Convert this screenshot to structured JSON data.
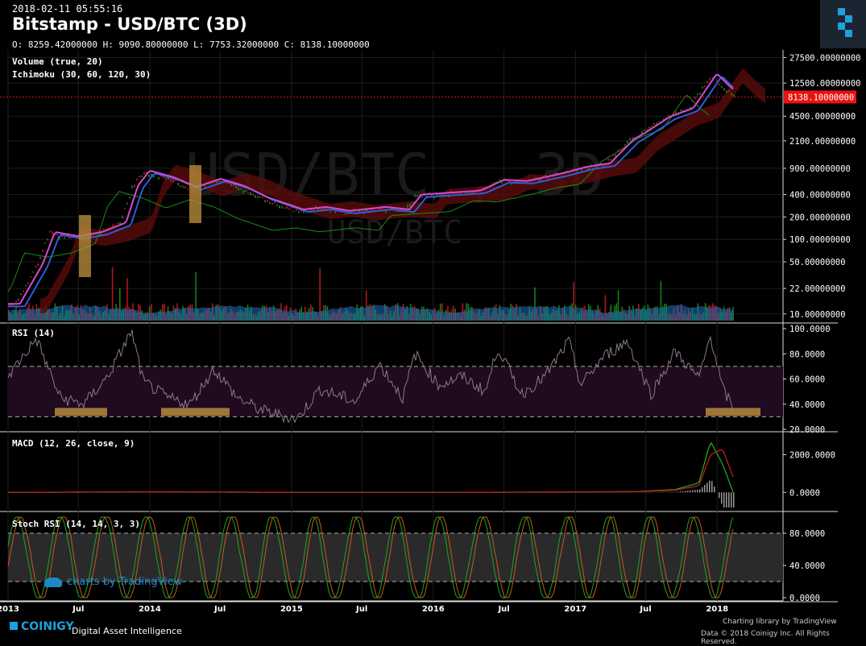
{
  "header": {
    "timestamp": "2018-02-11 05:55:16",
    "title": "Bitstamp - USD/BTC (3D)",
    "ohlc": "O: 8259.42000000 H: 9090.80000000 L: 7753.32000000 C: 8138.10000000"
  },
  "watermark": {
    "main": "USD/BTC , 3D",
    "sub": "USD/BTC"
  },
  "colors": {
    "up": "#1a8c1a",
    "down": "#c41a1a",
    "tenkan": "#d34ad3",
    "kijun": "#2f5cd6",
    "rsi_line": "#8a7a8a",
    "macd": "#1fa61f",
    "signal": "#c41a1a",
    "stoch_k": "#1fa61f",
    "stoch_d": "#c85a1a",
    "highlight": "#b58a3a",
    "price_tag": "#e8130f",
    "volume_ma": "#1e6fb8"
  },
  "panels": {
    "main": {
      "labels": [
        "Volume (true, 20)",
        "Ichimoku (30, 60, 120, 30)"
      ]
    },
    "rsi": {
      "label": "RSI (14)"
    },
    "macd": {
      "label": "MACD (12, 26, close, 9)"
    },
    "stoch": {
      "label": "Stoch RSI (14, 14, 3, 3)"
    }
  },
  "chart_data": [
    {
      "type": "line",
      "panel": "price",
      "scale": "log",
      "x_labels": [
        "2013",
        "Jul",
        "2014",
        "Jul",
        "2015",
        "Jul",
        "2016",
        "Jul",
        "2017",
        "Jul",
        "2018"
      ],
      "y_ticks": [
        "27500.00000000",
        "12500.00000000",
        "4500.00000000",
        "2100.00000000",
        "900.00000000",
        "400.00000000",
        "200.00000000",
        "100.00000000",
        "50.00000000",
        "22.00000000",
        "10.00000000"
      ],
      "y_tick_values": [
        27500,
        12500,
        4500,
        2100,
        900,
        400,
        200,
        100,
        50,
        22,
        10
      ],
      "last_price_label": "8138.10000000",
      "last_price": 8138.1,
      "x": [
        "2013-01",
        "2013-03",
        "2013-04",
        "2013-06",
        "2013-08",
        "2013-10",
        "2013-11",
        "2013-12",
        "2014-02",
        "2014-04",
        "2014-06",
        "2014-08",
        "2014-10",
        "2015-01",
        "2015-03",
        "2015-05",
        "2015-08",
        "2015-10",
        "2015-11",
        "2016-01",
        "2016-04",
        "2016-06",
        "2016-08",
        "2016-11",
        "2017-01",
        "2017-03",
        "2017-05",
        "2017-06",
        "2017-08",
        "2017-10",
        "2017-12",
        "2018-01",
        "2018-02"
      ],
      "close": [
        13,
        45,
        120,
        105,
        120,
        160,
        500,
        800,
        650,
        480,
        620,
        500,
        350,
        240,
        260,
        230,
        260,
        240,
        380,
        400,
        430,
        600,
        580,
        740,
        900,
        1000,
        2100,
        2600,
        4200,
        5500,
        16000,
        11000,
        8138
      ]
    },
    {
      "type": "line",
      "panel": "rsi",
      "y_ticks": [
        "100.0000",
        "80.0000",
        "60.0000",
        "40.0000",
        "20.0000"
      ],
      "y_tick_values": [
        100,
        80,
        60,
        40,
        20
      ],
      "bands": [
        70,
        30
      ],
      "x": [
        "2013-01",
        "2013-03",
        "2013-05",
        "2013-07",
        "2013-09",
        "2013-11",
        "2013-12",
        "2014-02",
        "2014-04",
        "2014-06",
        "2014-08",
        "2014-10",
        "2015-01",
        "2015-03",
        "2015-06",
        "2015-08",
        "2015-10",
        "2015-11",
        "2016-01",
        "2016-03",
        "2016-05",
        "2016-06",
        "2016-08",
        "2016-10",
        "2016-12",
        "2017-01",
        "2017-03",
        "2017-05",
        "2017-07",
        "2017-09",
        "2017-11",
        "2017-12",
        "2018-01",
        "2018-02"
      ],
      "values": [
        68,
        92,
        45,
        40,
        62,
        98,
        58,
        45,
        40,
        68,
        45,
        35,
        28,
        52,
        42,
        72,
        45,
        80,
        55,
        62,
        50,
        85,
        48,
        62,
        90,
        55,
        78,
        90,
        48,
        82,
        60,
        95,
        52,
        35
      ]
    },
    {
      "type": "line",
      "panel": "macd",
      "y_ticks": [
        "2000.0000",
        "0.0000"
      ],
      "y_tick_values": [
        2000,
        0
      ],
      "x": [
        "2013-01",
        "2014-01",
        "2015-01",
        "2016-01",
        "2017-01",
        "2017-06",
        "2017-09",
        "2017-11",
        "2017-12",
        "2018-01",
        "2018-02"
      ],
      "macd": [
        0,
        30,
        0,
        0,
        20,
        50,
        150,
        500,
        2700,
        1500,
        -200
      ],
      "signal": [
        0,
        20,
        0,
        0,
        10,
        40,
        120,
        350,
        2000,
        2300,
        600
      ]
    },
    {
      "type": "line",
      "panel": "stoch_rsi",
      "y_ticks": [
        "80.0000",
        "40.0000",
        "0.0000"
      ],
      "y_tick_values": [
        80,
        40,
        0
      ],
      "bands": [
        80,
        20
      ]
    }
  ],
  "branding": {
    "tv_badge": "charts by TradingView",
    "coinigy": "COINIGY",
    "tagline": "Digital Asset Intelligence",
    "lib": "Charting library by  TradingView",
    "copyright": "Data © 2018  Coinigy Inc. All Rights Reserved."
  }
}
